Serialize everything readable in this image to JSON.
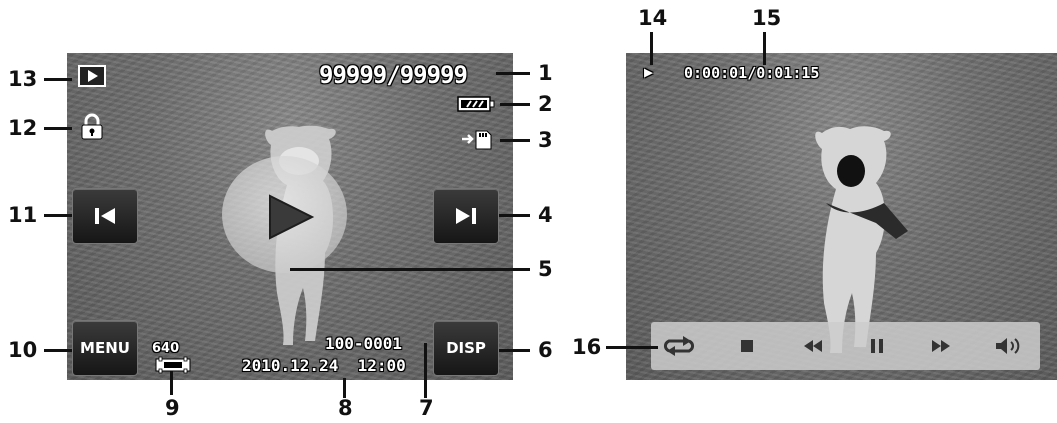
{
  "left_screen": {
    "file_counter": "99999/99999",
    "file_number": "100-0001",
    "datetime": "2010.12.24  12:00",
    "resolution": "640",
    "menu_label": "MENU",
    "disp_label": "DISP",
    "icons": {
      "mode": "playback-mode-icon",
      "protect": "lock-icon",
      "battery": "battery-icon",
      "memory": "memory-card-icon",
      "prev": "previous-icon",
      "next": "next-icon",
      "play": "play-icon",
      "video": "movie-icon"
    }
  },
  "right_screen": {
    "play_status": "▶",
    "time_elapsed_total": "0:00:01/0:01:15",
    "controls": [
      "repeat-icon",
      "stop-icon",
      "rewind-icon",
      "pause-icon",
      "fast-forward-icon",
      "volume-icon"
    ]
  },
  "callouts": {
    "n1": "1",
    "n2": "2",
    "n3": "3",
    "n4": "4",
    "n5": "5",
    "n6": "6",
    "n7": "7",
    "n8": "8",
    "n9": "9",
    "n10": "10",
    "n11": "11",
    "n12": "12",
    "n13": "13",
    "n14": "14",
    "n15": "15",
    "n16": "16"
  },
  "colors": {
    "osd_text": "#ffffff",
    "button_bg": "#222222",
    "control_bar": "#cdcdcd"
  }
}
